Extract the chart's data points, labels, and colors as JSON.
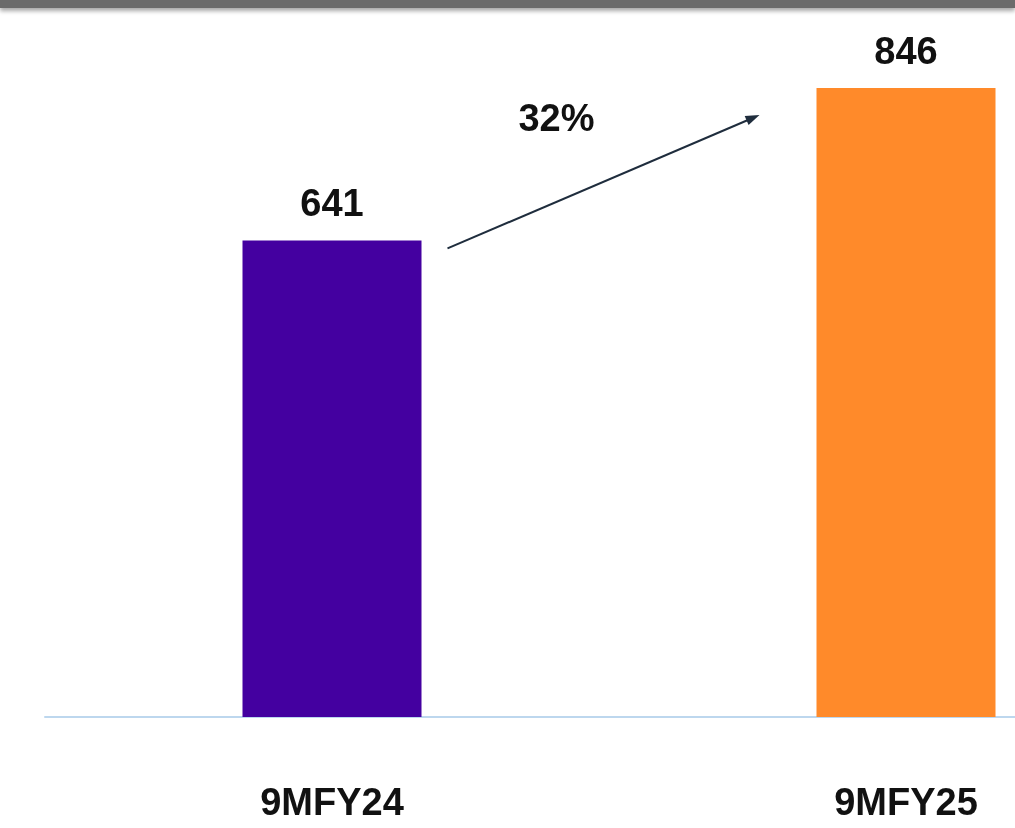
{
  "chart_data": {
    "type": "bar",
    "categories": [
      "9MFY24",
      "9MFY25"
    ],
    "values": [
      641,
      846
    ],
    "colors": [
      "#4400a0",
      "#ff8a2a"
    ],
    "data_labels": true,
    "annotations": [
      "32%"
    ]
  }
}
